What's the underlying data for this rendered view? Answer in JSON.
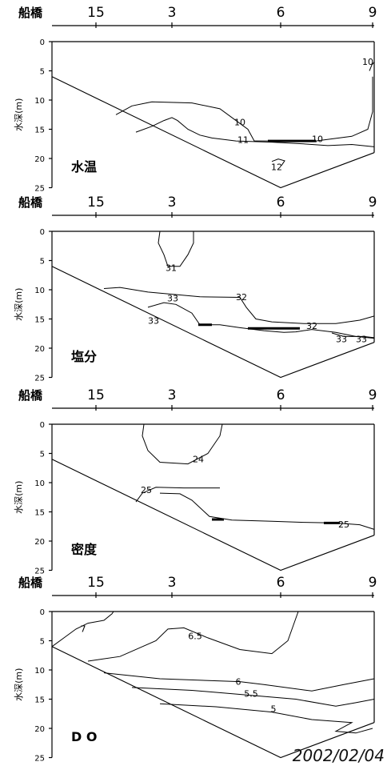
{
  "date": "2002/02/04",
  "chart_data": [
    {
      "type": "contour",
      "panel_label": "水温",
      "station_labels": [
        "船橋",
        "15",
        "3",
        "6",
        "9"
      ],
      "ylabel": "水深(m)",
      "ylim": [
        0,
        25
      ],
      "y_ticks": [
        0,
        5,
        10,
        15,
        20,
        25
      ],
      "contour_labels": [
        "10",
        "10",
        "11",
        "10",
        "12"
      ]
    },
    {
      "type": "contour",
      "panel_label": "塩分",
      "station_labels": [
        "船橋",
        "15",
        "3",
        "6",
        "9"
      ],
      "ylabel": "水深(m)",
      "ylim": [
        0,
        25
      ],
      "y_ticks": [
        0,
        5,
        10,
        15,
        20,
        25
      ],
      "contour_labels": [
        "31",
        "33",
        "32",
        "33",
        "32",
        "33",
        "33"
      ]
    },
    {
      "type": "contour",
      "panel_label": "密度",
      "station_labels": [
        "船橋",
        "15",
        "3",
        "6",
        "9"
      ],
      "ylabel": "水深(m)",
      "ylim": [
        0,
        25
      ],
      "y_ticks": [
        0,
        5,
        10,
        15,
        20,
        25
      ],
      "contour_labels": [
        "24",
        "25",
        "25"
      ]
    },
    {
      "type": "contour",
      "panel_label": "D O",
      "station_labels": [
        "船橋",
        "15",
        "3",
        "6",
        "9"
      ],
      "ylabel": "水深(m)",
      "ylim": [
        0,
        25
      ],
      "y_ticks": [
        0,
        5,
        10,
        15,
        20,
        25
      ],
      "contour_labels": [
        "7",
        "6.5",
        "6",
        "5.5",
        "5"
      ]
    }
  ]
}
